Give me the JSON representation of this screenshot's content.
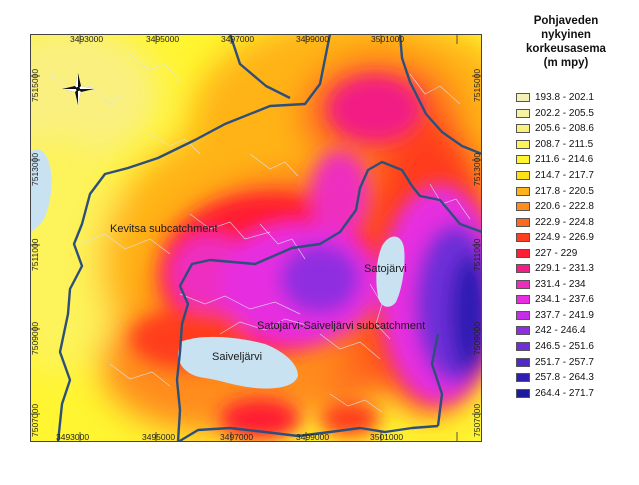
{
  "legend": {
    "title_lines": [
      "Pohjaveden",
      "nykyinen",
      "korkeusasema",
      "(m mpy)"
    ],
    "items": [
      {
        "label": "193.8 - 202.1",
        "color": "#f3f1b8"
      },
      {
        "label": "202.2 - 205.5",
        "color": "#f7f3a2"
      },
      {
        "label": "205.6 - 208.6",
        "color": "#faf080"
      },
      {
        "label": "208.7 - 211.5",
        "color": "#fdf35a"
      },
      {
        "label": "211.6 - 214.6",
        "color": "#fff531"
      },
      {
        "label": "214.7 - 217.7",
        "color": "#ffe017"
      },
      {
        "label": "217.8 - 220.5",
        "color": "#ffb319"
      },
      {
        "label": "220.6 - 222.8",
        "color": "#ff8c1c"
      },
      {
        "label": "222.9 - 224.8",
        "color": "#ff6a1c"
      },
      {
        "label": "224.9 - 226.9",
        "color": "#ff3d1f"
      },
      {
        "label": "227 - 229",
        "color": "#ff1e32"
      },
      {
        "label": "229.1 - 231.3",
        "color": "#f21e84"
      },
      {
        "label": "231.4 - 234",
        "color": "#ee2dbf"
      },
      {
        "label": "234.1 - 237.6",
        "color": "#e62ee0"
      },
      {
        "label": "237.7 - 241.9",
        "color": "#c42ee8"
      },
      {
        "label": "242 - 246.4",
        "color": "#8f2ee0"
      },
      {
        "label": "246.5 - 251.6",
        "color": "#6e2ed8"
      },
      {
        "label": "251.7 - 257.7",
        "color": "#5128cc"
      },
      {
        "label": "257.8 - 264.3",
        "color": "#2e1eb4"
      },
      {
        "label": "264.4 - 271.7",
        "color": "#1e1a9c"
      }
    ]
  },
  "map": {
    "x_ticks": [
      "3493000",
      "3495000",
      "3497000",
      "3499000",
      "3501000"
    ],
    "y_ticks": [
      "7515000",
      "7513000",
      "7511000",
      "7509000",
      "7507000"
    ],
    "labels": {
      "kevitsa": "Kevitsa subcatchment",
      "satojarvi": "Satojärvi",
      "satojarvi_saiveljarvi": "Satojarvi-Saiveljärvi subcatchment",
      "saiveljarvi": "Saiveljärvi"
    },
    "colors": {
      "lake": "#c9e2f2",
      "boundary": "#2d4f7c",
      "streams": "#d8e4ee"
    },
    "north_arrow": "compass-rose-icon"
  }
}
